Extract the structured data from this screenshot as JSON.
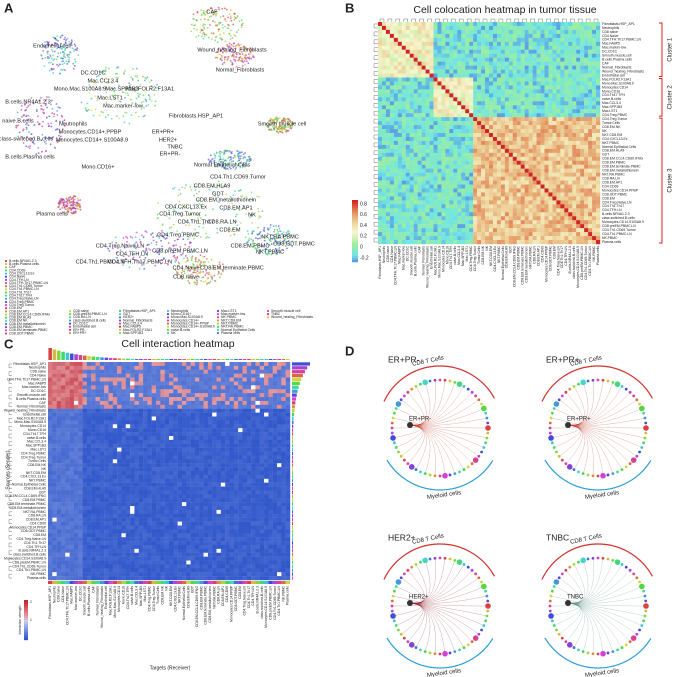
{
  "panel_letters": [
    "A",
    "B",
    "C",
    "D"
  ],
  "umap": {
    "cluster_labels": [
      "CAF",
      "Endothelial cell",
      "Wound_healing_Fibroblasts",
      "Normal_Fibroblasts",
      "DC.CD1C",
      "Mac.CCL3.4",
      "Mono.Mac.S100A8.9",
      "Mac.SPP1B3",
      "Mac.FOLR2.F13A1",
      "Mac.LST1",
      "Mac.marker-low",
      "Fibroblasts.HSP_AP1",
      "B.cells.NR4A1.2.3",
      "Smooth muscle cell",
      "naive.B.cells",
      "Neutrophils",
      "Monocytes.CD14+.PPBP",
      "Monocytes.CD14+.S100A8.9",
      "class-switched.B.cells",
      "ER+PR+",
      "HER2+",
      "TNBC",
      "ER+PR-",
      "Mono.CD16+",
      "Normal Epithelial Cells",
      "B.cells.Plasma cells",
      "CD4.Th1.CD69.Tumor",
      "CD8.EM.HLA9",
      "GDT",
      "CD8.EM.metallothionein",
      "Plasma cells",
      "CD4.CXCL13.Ex",
      "CD4.Treg.Tumor",
      "CD8.EM.AP1",
      "NK",
      "CD8.RA.LN",
      "CD8.EM",
      "CD4.Th1.Th17",
      "CD4.Treg.PBMC",
      "NKT.RA.PBMC",
      "CD4.Treg.Naive.LN",
      "CD8.EM.PBMC",
      "CD8.GDT.PBMC",
      "CD4.TFH.LN",
      "CD8.preEM.PBMC.LN",
      "NKT.PBMC",
      "CD4.Th1.PBMC.LN",
      "CD4.TFH.Th17.PBMC.LN",
      "CD4.Naive",
      "CD8.naive",
      "CD8.EM.terminate.PBMC"
    ],
    "legend": [
      [
        "B.cells.NR4A1.2.3",
        "B.cells.Plasma cells",
        "CAF",
        "CD4.CD69",
        "CD4.CXCL13.Ex",
        "CD4.Naive",
        "CD4.TFH.LN",
        "CD4.TFH.Th17.PBMC.LN",
        "CD4.Th1.CD69.Tumor",
        "CD4.Th1.PBMC.LN",
        "CD4.Th1.Th17",
        "CD4.Th17.TFH",
        "CD4.Treg.Naive.LN",
        "CD4.Treg.PBMC",
        "CD4.Treg.Tumor",
        "CD8.EM",
        "CD8.EM.AP1",
        "CD8.EM.CCL4.CD69.IFNG",
        "CD8.EM.HLA9",
        "CD8.EM.NK",
        "CD8.EM.metallothionein",
        "CD8.EM.PBMC",
        "CD8.EM.terminate.PBMC",
        "CD8.GDT.PBMC"
      ],
      [
        "CD8.naive",
        "CD8.preEM.PBMC.LN",
        "CD8.RA.LN",
        "class-switched.B.cells",
        "DC.CD1C",
        "Endothelial cell",
        "ER+PR-",
        "ER+PR+"
      ],
      [
        "Fibroblasts.HSP_AP1",
        "GDT",
        "HER2+",
        "Normal_Fibroblasts",
        "Mac.CCL3.4",
        "Mac.FABP5",
        "Mac.FOLR2.F13A1",
        "Mac.SPP1B3"
      ],
      [
        "Neutrophils",
        "Mono.CD16+",
        "Mono.Mac.S100A8.9",
        "Monocytes.CD14+",
        "Monocytes.CD14+.PPBP",
        "Monocytes.CD14+.S100A8.9",
        "naive.B.cells",
        "NK"
      ],
      [
        "Mac.LST1",
        "Mac.marker-low",
        "NK.PBMC",
        "NKT.CD8.EM",
        "NKT.PBMC",
        "NKT.RA.PBMC",
        "Normal Epithelial Cells",
        "Plasma cells"
      ],
      [
        "Smooth muscle cell",
        "TNBC",
        "Wound_healing_Fibroblasts"
      ]
    ]
  },
  "colocation": {
    "title": "Cell colocation heatmap in tumor tissue",
    "clusters": [
      "Cluster 1",
      "Cluster 2",
      "Cluster 3"
    ],
    "colorbar_ticks": [
      "0.8",
      "0.6",
      "0.4",
      "0.2",
      "0",
      "-0.2"
    ],
    "cell_types": [
      "Fibroblasts.HSP_AP1",
      "Neutrophils",
      "CD8.naive",
      "CD4.Naive",
      "CD4.TFH.Th17.PBMC.LN",
      "Mac.FABP5",
      "Mac.marker-low",
      "DC.CD1C",
      "Smooth.muscle.cell",
      "B.cells.Plasma.cells",
      "CAF",
      "Normal_Fibroblasts",
      "Wound_healing_Fibroblasts",
      "Endothelial.cell",
      "Mac.FOLR2.F13A1",
      "Mono.Mac.S100A8.9",
      "Monocytes.CD14",
      "Mono.CD16",
      "CD4.Th17.TFH",
      "naive.B.cells",
      "Mac.CCL3.4",
      "Mac.SPP1B3",
      "Mac.LST1",
      "CD4.Treg.PBMC",
      "CD4.Treg.Tumor",
      "Tumor.Cells",
      "CD8.EM.NK",
      "NK",
      "NKT.CD8.EM",
      "CD4.CXCL13.Ex",
      "NKT.PBMC",
      "Normal.Epithelial.Cells",
      "CD8.EM.HLA9",
      "GDT",
      "CD8.EM.CCL4.CD69.IFNG",
      "CD8.EM.PBMC",
      "CD8.EM.terminate.PBMC",
      "CD8.EM.metallothionein",
      "NKT.RA.PBMC",
      "CD8.RA.LN",
      "CD8.EM.AP1",
      "CD4.CD69",
      "Monocytes.CD14.PPBP",
      "CD8.GDT.PBMC",
      "CD8.EM",
      "CD4.Treg.Naive.LN",
      "CD4.Th1.Th17",
      "CD4.TFH.LN",
      "B.cells.NR4A1.2.3",
      "class.switched.B.cells",
      "Monocytes.CD14.S100A8.9",
      "CD8.preEM.PBMC.LN",
      "CD4.Th1.CD69.Tumor",
      "CD4.Th1.PBMC.LN",
      "NK.PBMC",
      "Plasma.cells"
    ]
  },
  "interaction": {
    "title": "Cell interaction heatmap",
    "y_label": "Sources (Sender)",
    "x_label": "Targets (Receiver)",
    "colorbar_label": "Interaction strength",
    "colorbar_ticks": [
      "2",
      "1"
    ]
  },
  "chords": {
    "subtypes": [
      "ER+PR-",
      "ER+PR+",
      "HER2+",
      "TNBC"
    ],
    "arc_labels": [
      "CD8 T Cells",
      "Myeloid cells"
    ]
  }
}
